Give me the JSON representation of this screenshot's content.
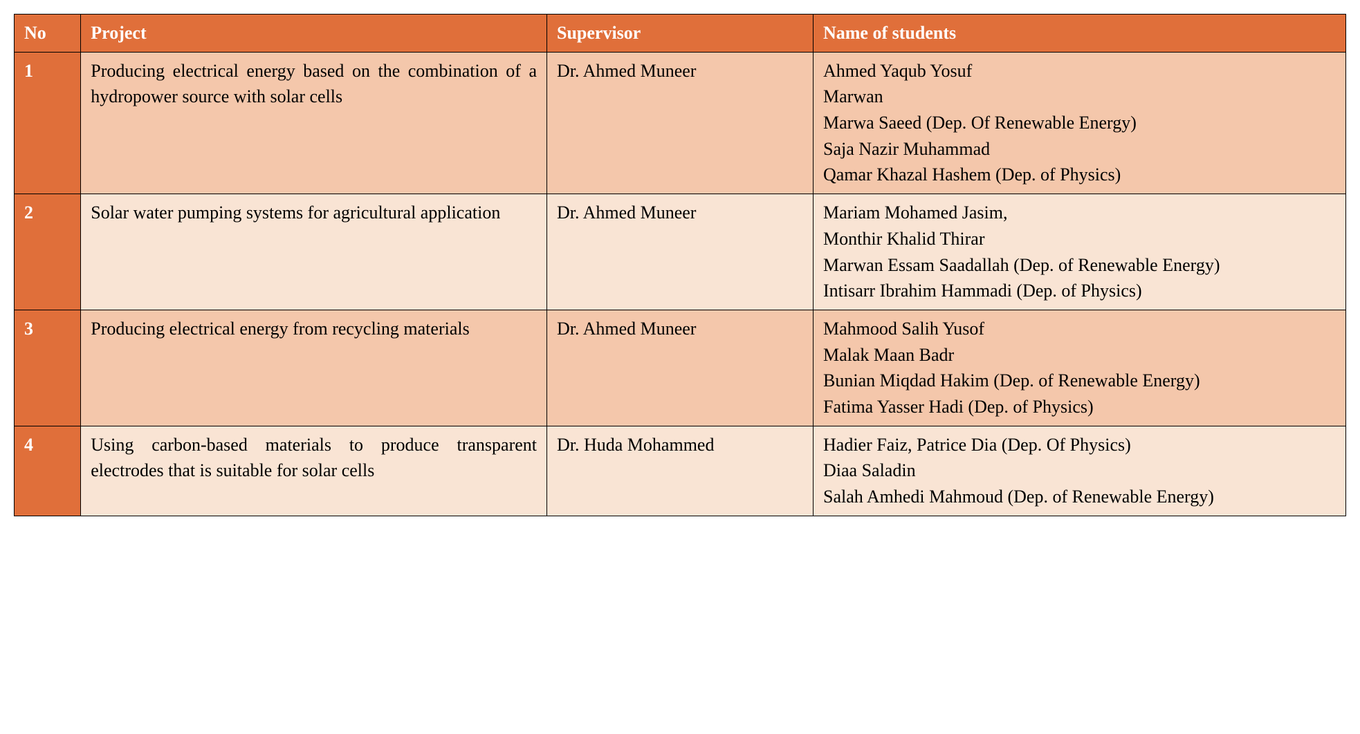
{
  "colors": {
    "header_bg": "#e06f3a",
    "num_bg": "#e06f3a",
    "row_odd_bg": "#f4c7ab",
    "row_even_bg": "#f9e4d4",
    "header_text": "#ffffff",
    "body_text": "#000000",
    "border": "#000000"
  },
  "columns": {
    "no": "No",
    "project": "Project",
    "supervisor": "Supervisor",
    "students": "Name of students"
  },
  "rows": [
    {
      "no": "1",
      "project": "Producing electrical energy based on the combination of a hydropower source with solar cells",
      "project_justify": true,
      "supervisor": "Dr. Ahmed Muneer",
      "students": [
        "Ahmed Yaqub Yosuf",
        "Marwan",
        "Marwa Saeed (Dep. Of Renewable Energy)",
        "Saja Nazir Muhammad",
        "Qamar Khazal Hashem (Dep. of Physics)"
      ]
    },
    {
      "no": "2",
      "project": "Solar water pumping systems for agricultural application",
      "project_justify": false,
      "supervisor": "Dr. Ahmed Muneer",
      "students": [
        "Mariam Mohamed Jasim,",
        "Monthir Khalid Thirar",
        "Marwan Essam Saadallah (Dep. of Renewable Energy)",
        "Intisarr Ibrahim Hammadi (Dep. of Physics)"
      ]
    },
    {
      "no": "3",
      "project": "Producing electrical energy from recycling materials",
      "project_justify": false,
      "supervisor": "Dr. Ahmed Muneer",
      "students": [
        "Mahmood Salih Yusof",
        "Malak Maan Badr",
        "Bunian Miqdad Hakim (Dep. of Renewable Energy)",
        "Fatima Yasser Hadi (Dep. of Physics)"
      ]
    },
    {
      "no": "4",
      "project": "Using carbon-based materials to produce transparent electrodes that is suitable for solar  cells",
      "project_justify": true,
      "supervisor": "Dr. Huda Mohammed",
      "students": [
        "Hadier Faiz, Patrice Dia (Dep. Of Physics)",
        "Diaa Saladin",
        "Salah Amhedi Mahmoud (Dep. of Renewable Energy)"
      ]
    }
  ]
}
